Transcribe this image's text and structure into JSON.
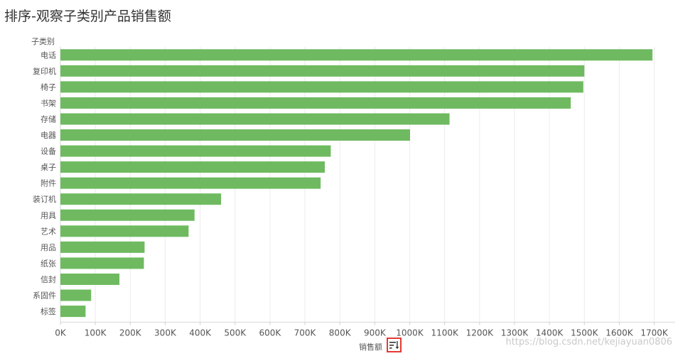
{
  "title": "排序-观察子类别产品销售额",
  "axis": {
    "category_header": "子类别",
    "value_title": "销售额"
  },
  "sort_button": {
    "icon": "sort-descending-icon",
    "color": "#e53935"
  },
  "watermark": "https://blog.csdn.net/kejiayuan0806",
  "colors": {
    "bar": "#6fba60",
    "grid": "#ececec",
    "text": "#555555"
  },
  "chart_data": {
    "type": "bar",
    "orientation": "horizontal",
    "categories": [
      "电话",
      "复印机",
      "椅子",
      "书架",
      "存储",
      "电器",
      "设备",
      "桌子",
      "附件",
      "装订机",
      "用具",
      "艺术",
      "用品",
      "纸张",
      "信封",
      "系固件",
      "标签"
    ],
    "values": [
      1695000,
      1500000,
      1497000,
      1461000,
      1114000,
      1001000,
      774000,
      757000,
      745000,
      460000,
      384000,
      367000,
      241000,
      239000,
      169000,
      88000,
      72000
    ],
    "xlabel": "销售额",
    "ylabel": "子类别",
    "xlim": [
      0,
      1750000
    ],
    "x_ticks": [
      0,
      100000,
      200000,
      300000,
      400000,
      500000,
      600000,
      700000,
      800000,
      900000,
      1000000,
      1100000,
      1200000,
      1300000,
      1400000,
      1500000,
      1600000,
      1700000
    ],
    "x_tick_labels": [
      "0K",
      "100K",
      "200K",
      "300K",
      "400K",
      "500K",
      "600K",
      "700K",
      "800K",
      "900K",
      "1000K",
      "1100K",
      "1200K",
      "1300K",
      "1400K",
      "1500K",
      "1600K",
      "1700K"
    ],
    "grid": true,
    "sorted": "descending"
  }
}
